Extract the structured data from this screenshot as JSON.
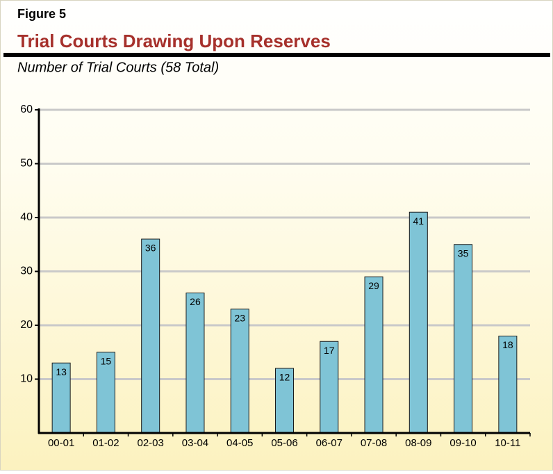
{
  "chart_data": {
    "type": "bar",
    "figure_label": "Figure 5",
    "title": "Trial Courts Drawing Upon Reserves",
    "subtitle": "Number of Trial Courts (58 Total)",
    "categories": [
      "00-01",
      "01-02",
      "02-03",
      "03-04",
      "04-05",
      "05-06",
      "06-07",
      "07-08",
      "08-09",
      "09-10",
      "10-11"
    ],
    "values": [
      13,
      15,
      36,
      26,
      23,
      12,
      17,
      29,
      41,
      35,
      18
    ],
    "color": "#7fc4d6",
    "ylim": [
      0,
      60
    ],
    "yticks": [
      10,
      20,
      30,
      40,
      50,
      60
    ],
    "grid": true
  }
}
